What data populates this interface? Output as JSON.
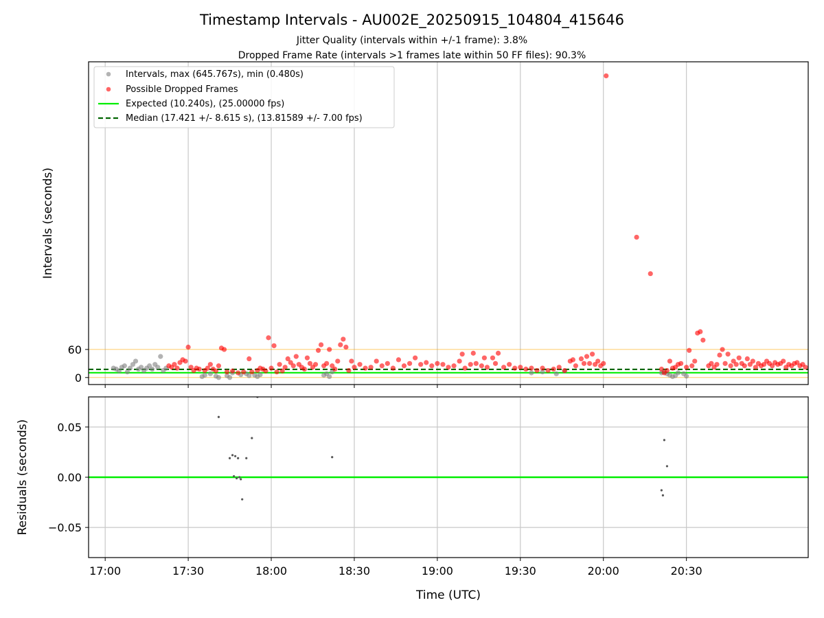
{
  "title": "Timestamp Intervals - AU002E_20250915_104804_415646",
  "subtitle_1": "Jitter Quality (intervals within +/-1 frame): 3.8%",
  "subtitle_2": "Dropped Frame Rate (intervals >1 frames late within 50 FF files): 90.3%",
  "colors": {
    "intervals": "#808080",
    "dropped": "#ff0000",
    "expected": "#00ee00",
    "median": "#006400",
    "bounds": "#ffa500",
    "residuals": "#555555",
    "grid": "#c8c8c8"
  },
  "chart_data": [
    {
      "type": "scatter",
      "ylabel": "Intervals (seconds)",
      "xrange": [
        "16:54",
        "21:14"
      ],
      "ylim": [
        -15,
        675
      ],
      "y_ticks": [
        0,
        60
      ],
      "x_ticks": [
        "17:00",
        "17:30",
        "18:00",
        "18:30",
        "19:00",
        "19:30",
        "20:00",
        "20:30"
      ],
      "grid": "vertical",
      "legend_position": "top-left",
      "legend": [
        "Intervals, max (645.767s), min (0.480s)",
        "Possible Dropped Frames",
        "Expected (10.240s), (25.00000 fps)",
        "Median (17.421 +/- 8.615 s), (13.81589 +/- 7.00 fps)"
      ],
      "reference_lines": {
        "expected": 10.24,
        "median": 17.421,
        "bounds": [
          0,
          60
        ]
      },
      "series": [
        {
          "name": "Intervals, max (645.767s), min (0.480s)",
          "points": [
            [
              "17:03",
              20
            ],
            [
              "17:04",
              18
            ],
            [
              "17:05",
              14
            ],
            [
              "17:06",
              22
            ],
            [
              "17:07",
              25
            ],
            [
              "17:08",
              12
            ],
            [
              "17:09",
              20
            ],
            [
              "17:10",
              28
            ],
            [
              "17:11",
              35
            ],
            [
              "17:12",
              18
            ],
            [
              "17:13",
              22
            ],
            [
              "17:14",
              15
            ],
            [
              "17:15",
              20
            ],
            [
              "17:16",
              25
            ],
            [
              "17:17",
              18
            ],
            [
              "17:18",
              28
            ],
            [
              "17:19",
              22
            ],
            [
              "17:20",
              45
            ],
            [
              "17:21",
              15
            ],
            [
              "17:22",
              20
            ],
            [
              "17:35",
              2
            ],
            [
              "17:36",
              5
            ],
            [
              "17:38",
              8
            ],
            [
              "17:40",
              3
            ],
            [
              "17:41",
              0
            ],
            [
              "17:44",
              4
            ],
            [
              "17:45",
              0
            ],
            [
              "17:46",
              10
            ],
            [
              "17:49",
              6
            ],
            [
              "17:51",
              8
            ],
            [
              "17:52",
              4
            ],
            [
              "17:54",
              5
            ],
            [
              "17:55",
              2
            ],
            [
              "17:56",
              6
            ],
            [
              "18:19",
              5
            ],
            [
              "18:20",
              8
            ],
            [
              "18:21",
              2
            ],
            [
              "18:22",
              12
            ],
            [
              "19:34",
              10
            ],
            [
              "19:38",
              12
            ],
            [
              "19:43",
              8
            ],
            [
              "19:46",
              14
            ],
            [
              "20:21",
              10
            ],
            [
              "20:22",
              12
            ],
            [
              "20:23",
              8
            ],
            [
              "20:24",
              5
            ],
            [
              "20:25",
              2
            ],
            [
              "20:26",
              4
            ],
            [
              "20:27",
              10
            ],
            [
              "20:29",
              8
            ],
            [
              "20:30",
              3
            ]
          ]
        },
        {
          "name": "Possible Dropped Frames",
          "points": [
            [
              "17:23",
              25
            ],
            [
              "17:24",
              22
            ],
            [
              "17:25",
              28
            ],
            [
              "17:26",
              20
            ],
            [
              "17:27",
              32
            ],
            [
              "17:28",
              38
            ],
            [
              "17:29",
              35
            ],
            [
              "17:30",
              65
            ],
            [
              "17:31",
              22
            ],
            [
              "17:32",
              15
            ],
            [
              "17:33",
              20
            ],
            [
              "17:34",
              18
            ],
            [
              "17:36",
              15
            ],
            [
              "17:37",
              20
            ],
            [
              "17:38",
              28
            ],
            [
              "17:39",
              18
            ],
            [
              "17:40",
              14
            ],
            [
              "17:41",
              25
            ],
            [
              "17:42",
              63
            ],
            [
              "17:43",
              60
            ],
            [
              "17:44",
              12
            ],
            [
              "17:46",
              14
            ],
            [
              "17:48",
              10
            ],
            [
              "17:50",
              12
            ],
            [
              "17:52",
              40
            ],
            [
              "17:53",
              12
            ],
            [
              "17:55",
              15
            ],
            [
              "17:56",
              20
            ],
            [
              "17:57",
              18
            ],
            [
              "17:58",
              14
            ],
            [
              "17:59",
              85
            ],
            [
              "18:00",
              20
            ],
            [
              "18:01",
              68
            ],
            [
              "18:02",
              12
            ],
            [
              "18:03",
              28
            ],
            [
              "18:04",
              14
            ],
            [
              "18:05",
              22
            ],
            [
              "18:06",
              40
            ],
            [
              "18:07",
              32
            ],
            [
              "18:08",
              25
            ],
            [
              "18:09",
              45
            ],
            [
              "18:10",
              28
            ],
            [
              "18:11",
              22
            ],
            [
              "18:12",
              18
            ],
            [
              "18:13",
              42
            ],
            [
              "18:14",
              30
            ],
            [
              "18:15",
              22
            ],
            [
              "18:16",
              28
            ],
            [
              "18:17",
              58
            ],
            [
              "18:18",
              70
            ],
            [
              "18:19",
              25
            ],
            [
              "18:20",
              30
            ],
            [
              "18:21",
              60
            ],
            [
              "18:22",
              25
            ],
            [
              "18:23",
              18
            ],
            [
              "18:24",
              35
            ],
            [
              "18:25",
              70
            ],
            [
              "18:26",
              82
            ],
            [
              "18:27",
              65
            ],
            [
              "18:28",
              15
            ],
            [
              "18:29",
              35
            ],
            [
              "18:30",
              22
            ],
            [
              "18:32",
              28
            ],
            [
              "18:34",
              20
            ],
            [
              "18:36",
              22
            ],
            [
              "18:38",
              35
            ],
            [
              "18:40",
              25
            ],
            [
              "18:42",
              30
            ],
            [
              "18:44",
              20
            ],
            [
              "18:46",
              38
            ],
            [
              "18:48",
              25
            ],
            [
              "18:50",
              30
            ],
            [
              "18:52",
              42
            ],
            [
              "18:54",
              28
            ],
            [
              "18:56",
              32
            ],
            [
              "18:58",
              25
            ],
            [
              "19:00",
              30
            ],
            [
              "19:02",
              28
            ],
            [
              "19:04",
              22
            ],
            [
              "19:06",
              25
            ],
            [
              "19:08",
              35
            ],
            [
              "19:09",
              50
            ],
            [
              "19:10",
              20
            ],
            [
              "19:12",
              28
            ],
            [
              "19:13",
              52
            ],
            [
              "19:14",
              30
            ],
            [
              "19:16",
              25
            ],
            [
              "19:17",
              42
            ],
            [
              "19:18",
              22
            ],
            [
              "19:20",
              42
            ],
            [
              "19:21",
              30
            ],
            [
              "19:22",
              52
            ],
            [
              "19:24",
              22
            ],
            [
              "19:26",
              28
            ],
            [
              "19:28",
              20
            ],
            [
              "19:30",
              22
            ],
            [
              "19:32",
              18
            ],
            [
              "19:34",
              20
            ],
            [
              "19:36",
              15
            ],
            [
              "19:38",
              20
            ],
            [
              "19:40",
              15
            ],
            [
              "19:42",
              18
            ],
            [
              "19:44",
              22
            ],
            [
              "19:46",
              15
            ],
            [
              "19:48",
              35
            ],
            [
              "19:49",
              38
            ],
            [
              "19:50",
              25
            ],
            [
              "19:52",
              40
            ],
            [
              "19:53",
              30
            ],
            [
              "19:54",
              45
            ],
            [
              "19:55",
              30
            ],
            [
              "19:56",
              50
            ],
            [
              "19:57",
              28
            ],
            [
              "19:58",
              35
            ],
            [
              "19:59",
              25
            ],
            [
              "20:00",
              30
            ],
            [
              "20:01",
              645
            ],
            [
              "20:12",
              300
            ],
            [
              "20:17",
              222
            ],
            [
              "20:21",
              18
            ],
            [
              "20:22",
              10
            ],
            [
              "20:23",
              15
            ],
            [
              "20:24",
              35
            ],
            [
              "20:25",
              20
            ],
            [
              "20:26",
              22
            ],
            [
              "20:27",
              28
            ],
            [
              "20:28",
              30
            ],
            [
              "20:30",
              22
            ],
            [
              "20:31",
              58
            ],
            [
              "20:32",
              25
            ],
            [
              "20:33",
              35
            ],
            [
              "20:34",
              95
            ],
            [
              "20:35",
              98
            ],
            [
              "20:36",
              80
            ],
            [
              "20:38",
              25
            ],
            [
              "20:39",
              30
            ],
            [
              "20:40",
              22
            ],
            [
              "20:41",
              28
            ],
            [
              "20:42",
              48
            ],
            [
              "20:43",
              60
            ],
            [
              "20:44",
              30
            ],
            [
              "20:45",
              50
            ],
            [
              "20:46",
              25
            ],
            [
              "20:47",
              35
            ],
            [
              "20:48",
              28
            ],
            [
              "20:49",
              42
            ],
            [
              "20:50",
              30
            ],
            [
              "20:51",
              25
            ],
            [
              "20:52",
              40
            ],
            [
              "20:53",
              28
            ],
            [
              "20:54",
              35
            ],
            [
              "20:55",
              22
            ],
            [
              "20:56",
              30
            ],
            [
              "20:57",
              25
            ],
            [
              "20:58",
              28
            ],
            [
              "20:59",
              35
            ],
            [
              "21:00",
              30
            ],
            [
              "21:01",
              25
            ],
            [
              "21:02",
              32
            ],
            [
              "21:03",
              28
            ],
            [
              "21:04",
              30
            ],
            [
              "21:05",
              35
            ],
            [
              "21:06",
              22
            ],
            [
              "21:07",
              28
            ],
            [
              "21:08",
              25
            ],
            [
              "21:09",
              30
            ],
            [
              "21:10",
              32
            ],
            [
              "21:11",
              25
            ],
            [
              "21:12",
              28
            ],
            [
              "21:13",
              22
            ]
          ]
        }
      ]
    },
    {
      "type": "scatter",
      "xlabel": "Time (UTC)",
      "ylabel": "Residuals (seconds)",
      "xrange": [
        "16:54",
        "21:14"
      ],
      "ylim": [
        -0.08,
        0.08
      ],
      "y_ticks": [
        0.05,
        0.0,
        -0.05
      ],
      "y_tick_labels": [
        "0.05",
        "0.00",
        "−0.05"
      ],
      "x_ticks": [
        "17:00",
        "17:30",
        "18:00",
        "18:30",
        "19:00",
        "19:30",
        "20:00",
        "20:30"
      ],
      "grid": "both",
      "reference_lines": {
        "zero": 0
      },
      "points": [
        [
          "17:41",
          0.06
        ],
        [
          "17:45",
          0.019
        ],
        [
          "17:46",
          0.022
        ],
        [
          "17:46.5",
          0.001
        ],
        [
          "17:47",
          0.021
        ],
        [
          "17:47.5",
          -0.001
        ],
        [
          "17:48",
          0.019
        ],
        [
          "17:48.5",
          0.0
        ],
        [
          "17:49",
          -0.002
        ],
        [
          "17:49.5",
          -0.022
        ],
        [
          "17:51",
          0.019
        ],
        [
          "17:53",
          0.039
        ],
        [
          "17:55",
          0.08
        ],
        [
          "18:22",
          0.02
        ],
        [
          "20:21",
          -0.013
        ],
        [
          "20:21.5",
          -0.018
        ],
        [
          "20:22",
          0.037
        ],
        [
          "20:23",
          0.011
        ]
      ]
    }
  ]
}
